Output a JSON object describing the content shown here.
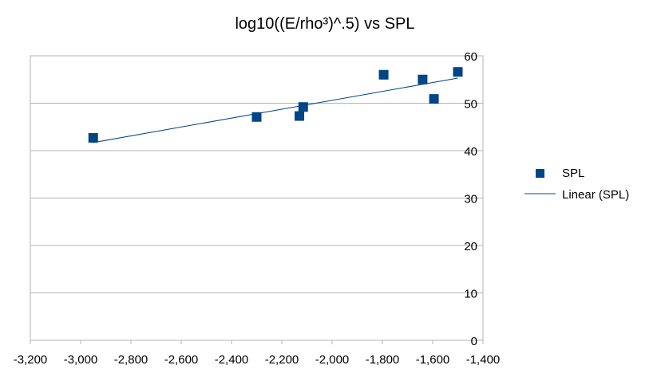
{
  "chart_data": {
    "type": "scatter",
    "title": "log10((E/rho³)^.5) vs SPL",
    "xlabel": "",
    "ylabel": "",
    "xlim": [
      -3200,
      -1400
    ],
    "ylim": [
      0,
      60
    ],
    "x_ticks": [
      "-3,200",
      "-3,000",
      "-2,800",
      "-2,600",
      "-2,400",
      "-2,200",
      "-2,000",
      "-1,800",
      "-1,600",
      "-1,400"
    ],
    "x_tick_values": [
      -3200,
      -3000,
      -2800,
      -2600,
      -2400,
      -2200,
      -2000,
      -1800,
      -1600,
      -1400
    ],
    "y_ticks": [
      "0",
      "10",
      "20",
      "30",
      "40",
      "50",
      "60"
    ],
    "y_tick_values": [
      0,
      10,
      20,
      30,
      40,
      50,
      60
    ],
    "y_axis_side": "right",
    "grid": true,
    "legend_position": "right",
    "series": [
      {
        "name": "SPL",
        "marker": "square",
        "color": "#004586",
        "points": [
          {
            "x": -2950,
            "y": 42.7
          },
          {
            "x": -2300,
            "y": 47.1
          },
          {
            "x": -2130,
            "y": 47.3
          },
          {
            "x": -2115,
            "y": 49.2
          },
          {
            "x": -1795,
            "y": 56.0
          },
          {
            "x": -1640,
            "y": 55.0
          },
          {
            "x": -1595,
            "y": 50.9
          },
          {
            "x": -1500,
            "y": 56.6
          }
        ]
      }
    ],
    "trendline": {
      "name": "Linear (SPL)",
      "color": "#004586",
      "x_range": [
        -2950,
        -1500
      ],
      "y_range": [
        41.7,
        55.3
      ]
    }
  }
}
